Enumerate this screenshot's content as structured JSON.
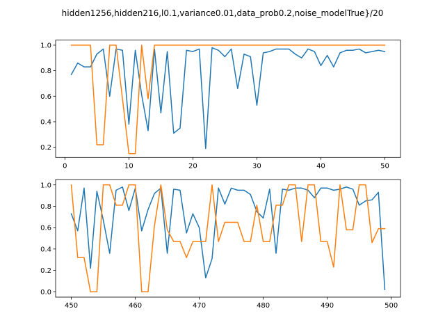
{
  "figure": {
    "title": "hidden1256,hidden216,l0.1,variance0.01,data_prob0.2,noise_modelTrue}/20"
  },
  "colors": {
    "series1": "#1f77b4",
    "series2": "#ff7f0e",
    "axes": "#000000",
    "background": "#ffffff"
  },
  "chart_data": [
    {
      "type": "line",
      "xlim": [
        -1.45,
        52.45
      ],
      "ylim": [
        0.12,
        1.04
      ],
      "xticks": [
        0,
        10,
        20,
        30,
        40,
        50
      ],
      "yticks": [
        0.2,
        0.4,
        0.6,
        0.8,
        1.0
      ],
      "xtick_labels": [
        "0",
        "10",
        "20",
        "30",
        "40",
        "50"
      ],
      "ytick_labels": [
        "0.2",
        "0.4",
        "0.6",
        "0.8",
        "1.0"
      ],
      "grid": false,
      "x": [
        1,
        2,
        3,
        4,
        5,
        6,
        7,
        8,
        9,
        10,
        11,
        12,
        13,
        14,
        15,
        16,
        17,
        18,
        19,
        20,
        21,
        22,
        23,
        24,
        25,
        26,
        27,
        28,
        29,
        30,
        31,
        32,
        33,
        34,
        35,
        36,
        37,
        38,
        39,
        40,
        41,
        42,
        43,
        44,
        45,
        46,
        47,
        48,
        49,
        50
      ],
      "series": [
        {
          "color": "#1f77b4",
          "values": [
            0.77,
            0.86,
            0.83,
            0.83,
            0.93,
            0.97,
            0.6,
            0.97,
            0.96,
            0.38,
            0.96,
            0.61,
            0.33,
            0.97,
            0.47,
            0.95,
            0.31,
            0.35,
            0.96,
            0.95,
            0.97,
            0.19,
            0.98,
            0.96,
            0.91,
            0.97,
            0.66,
            0.93,
            0.91,
            0.53,
            0.94,
            0.95,
            0.97,
            0.97,
            0.97,
            0.93,
            0.9,
            0.97,
            0.95,
            0.84,
            0.92,
            0.83,
            0.94,
            0.96,
            0.96,
            0.97,
            0.94,
            0.95,
            0.96,
            0.95
          ]
        },
        {
          "color": "#ff7f0e",
          "values": [
            1.0,
            1.0,
            1.0,
            1.0,
            0.22,
            0.22,
            1.0,
            1.0,
            0.58,
            0.15,
            0.15,
            1.0,
            0.58,
            1.0,
            1.0,
            1.0,
            1.0,
            1.0,
            1.0,
            1.0,
            1.0,
            1.0,
            1.0,
            1.0,
            1.0,
            1.0,
            1.0,
            1.0,
            1.0,
            1.0,
            1.0,
            1.0,
            1.0,
            1.0,
            1.0,
            1.0,
            1.0,
            1.0,
            1.0,
            1.0,
            1.0,
            1.0,
            1.0,
            1.0,
            1.0,
            1.0,
            1.0,
            1.0,
            1.0,
            1.0
          ]
        }
      ]
    },
    {
      "type": "line",
      "xlim": [
        447.55,
        501.45
      ],
      "ylim": [
        -0.05,
        1.05
      ],
      "xticks": [
        450,
        460,
        470,
        480,
        490,
        500
      ],
      "yticks": [
        0.0,
        0.2,
        0.4,
        0.6,
        0.8,
        1.0
      ],
      "xtick_labels": [
        "450",
        "460",
        "470",
        "480",
        "490",
        "500"
      ],
      "ytick_labels": [
        "0.0",
        "0.2",
        "0.4",
        "0.6",
        "0.8",
        "1.0"
      ],
      "grid": false,
      "x": [
        450,
        451,
        452,
        453,
        454,
        455,
        456,
        457,
        458,
        459,
        460,
        461,
        462,
        463,
        464,
        465,
        466,
        467,
        468,
        469,
        470,
        471,
        472,
        473,
        474,
        475,
        476,
        477,
        478,
        479,
        480,
        481,
        482,
        483,
        484,
        485,
        486,
        487,
        488,
        489,
        490,
        491,
        492,
        493,
        494,
        495,
        496,
        497,
        498,
        499
      ],
      "series": [
        {
          "color": "#1f77b4",
          "values": [
            0.73,
            0.57,
            0.97,
            0.22,
            0.94,
            0.67,
            0.36,
            0.95,
            0.98,
            0.76,
            0.97,
            0.57,
            0.77,
            0.92,
            0.97,
            0.36,
            0.96,
            0.95,
            0.55,
            0.73,
            0.6,
            0.13,
            0.31,
            0.97,
            0.82,
            0.97,
            0.95,
            0.95,
            0.91,
            0.75,
            0.69,
            0.96,
            0.36,
            0.96,
            0.95,
            0.97,
            0.97,
            0.95,
            0.88,
            0.97,
            0.97,
            0.95,
            0.96,
            0.98,
            0.96,
            0.81,
            0.85,
            0.86,
            0.93,
            0.02
          ]
        },
        {
          "color": "#ff7f0e",
          "values": [
            1.0,
            0.32,
            0.32,
            0.0,
            0.0,
            1.0,
            1.0,
            0.81,
            0.81,
            1.0,
            1.0,
            0.0,
            0.0,
            0.62,
            1.0,
            0.58,
            0.47,
            0.47,
            0.32,
            0.47,
            0.47,
            0.47,
            1.0,
            0.47,
            0.65,
            0.65,
            0.65,
            0.47,
            0.47,
            0.81,
            0.47,
            0.47,
            0.81,
            0.81,
            1.0,
            1.0,
            0.47,
            1.0,
            1.0,
            0.47,
            0.47,
            0.23,
            1.0,
            0.58,
            0.58,
            1.0,
            1.0,
            0.46,
            0.59,
            0.59
          ]
        }
      ]
    }
  ]
}
